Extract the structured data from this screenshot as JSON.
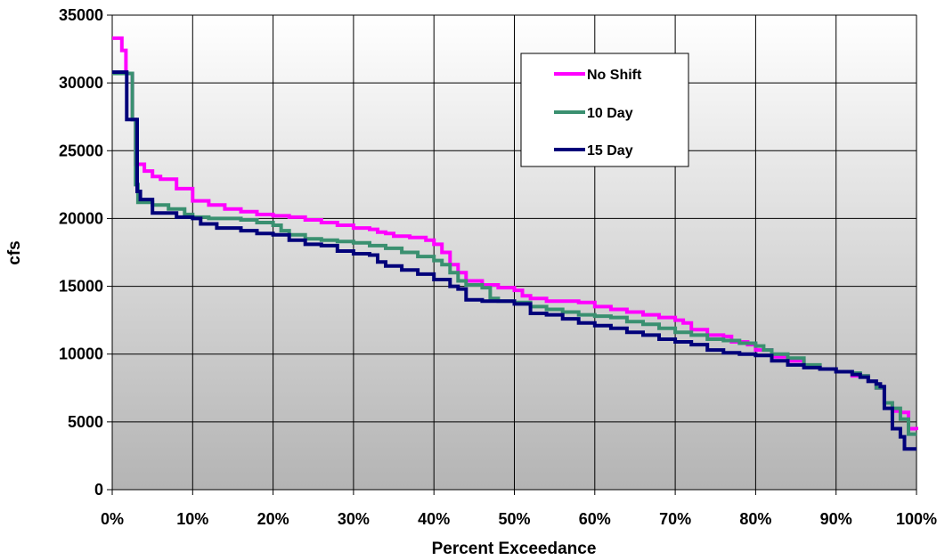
{
  "chart_data": {
    "type": "line",
    "title": "",
    "xlabel": "Percent Exceedance",
    "ylabel": "cfs",
    "xlim": [
      0,
      100
    ],
    "ylim": [
      0,
      35000
    ],
    "x_ticks": [
      0,
      10,
      20,
      30,
      40,
      50,
      60,
      70,
      80,
      90,
      100
    ],
    "x_tick_labels": [
      "0%",
      "10%",
      "20%",
      "30%",
      "40%",
      "50%",
      "60%",
      "70%",
      "80%",
      "90%",
      "100%"
    ],
    "y_ticks": [
      0,
      5000,
      10000,
      15000,
      20000,
      25000,
      30000,
      35000
    ],
    "y_tick_labels": [
      "0",
      "5000",
      "10000",
      "15000",
      "20000",
      "25000",
      "30000",
      "35000"
    ],
    "grid": true,
    "legend_position": "top-right",
    "series": [
      {
        "name": "No Shift",
        "color": "#ff00ff",
        "points": [
          [
            0,
            33300
          ],
          [
            1.2,
            32400
          ],
          [
            1.7,
            30700
          ],
          [
            2.5,
            27300
          ],
          [
            2.9,
            24000
          ],
          [
            4,
            23500
          ],
          [
            5,
            23100
          ],
          [
            6,
            22900
          ],
          [
            8,
            22200
          ],
          [
            10,
            21300
          ],
          [
            12,
            21000
          ],
          [
            14,
            20700
          ],
          [
            16,
            20500
          ],
          [
            18,
            20300
          ],
          [
            20,
            20200
          ],
          [
            22,
            20100
          ],
          [
            24,
            19900
          ],
          [
            26,
            19700
          ],
          [
            28,
            19500
          ],
          [
            30,
            19300
          ],
          [
            32,
            19200
          ],
          [
            33,
            19000
          ],
          [
            34,
            18900
          ],
          [
            35,
            18700
          ],
          [
            37,
            18600
          ],
          [
            39,
            18400
          ],
          [
            40,
            18100
          ],
          [
            41,
            17500
          ],
          [
            42,
            16600
          ],
          [
            43,
            16000
          ],
          [
            44,
            15400
          ],
          [
            46,
            15100
          ],
          [
            48,
            14900
          ],
          [
            50,
            14700
          ],
          [
            51,
            14300
          ],
          [
            52,
            14100
          ],
          [
            54,
            13900
          ],
          [
            58,
            13800
          ],
          [
            60,
            13500
          ],
          [
            62,
            13300
          ],
          [
            64,
            13100
          ],
          [
            66,
            12900
          ],
          [
            68,
            12700
          ],
          [
            70,
            12500
          ],
          [
            71,
            12300
          ],
          [
            72,
            11800
          ],
          [
            74,
            11400
          ],
          [
            76,
            11300
          ],
          [
            77,
            10900
          ],
          [
            79,
            10700
          ],
          [
            80,
            10300
          ],
          [
            82,
            9800
          ],
          [
            84,
            9500
          ],
          [
            86,
            9100
          ],
          [
            88,
            8900
          ],
          [
            90,
            8700
          ],
          [
            92,
            8400
          ],
          [
            94,
            8000
          ],
          [
            95,
            7500
          ],
          [
            96,
            6400
          ],
          [
            97,
            5800
          ],
          [
            98,
            5700
          ],
          [
            99,
            4500
          ],
          [
            100,
            4400
          ]
        ]
      },
      {
        "name": "10 Day",
        "color": "#3a9070",
        "points": [
          [
            0,
            30700
          ],
          [
            1.7,
            30700
          ],
          [
            2.5,
            27300
          ],
          [
            2.9,
            22500
          ],
          [
            3.2,
            21200
          ],
          [
            5,
            21000
          ],
          [
            7,
            20700
          ],
          [
            9,
            20300
          ],
          [
            10,
            20100
          ],
          [
            12,
            20000
          ],
          [
            16,
            19900
          ],
          [
            18,
            19700
          ],
          [
            20,
            19500
          ],
          [
            21,
            19100
          ],
          [
            22,
            18800
          ],
          [
            24,
            18500
          ],
          [
            26,
            18400
          ],
          [
            28,
            18300
          ],
          [
            30,
            18200
          ],
          [
            32,
            18000
          ],
          [
            34,
            17800
          ],
          [
            36,
            17500
          ],
          [
            38,
            17200
          ],
          [
            40,
            16900
          ],
          [
            41,
            16600
          ],
          [
            42,
            16000
          ],
          [
            43,
            15400
          ],
          [
            44,
            15100
          ],
          [
            46,
            14900
          ],
          [
            47,
            14100
          ],
          [
            48,
            13900
          ],
          [
            50,
            13800
          ],
          [
            52,
            13500
          ],
          [
            54,
            13300
          ],
          [
            56,
            13100
          ],
          [
            58,
            12900
          ],
          [
            60,
            12800
          ],
          [
            62,
            12700
          ],
          [
            64,
            12400
          ],
          [
            66,
            12200
          ],
          [
            68,
            11900
          ],
          [
            70,
            11600
          ],
          [
            72,
            11400
          ],
          [
            74,
            11100
          ],
          [
            76,
            11000
          ],
          [
            78,
            10800
          ],
          [
            80,
            10600
          ],
          [
            81,
            10300
          ],
          [
            82,
            10000
          ],
          [
            84,
            9700
          ],
          [
            86,
            9200
          ],
          [
            88,
            8900
          ],
          [
            90,
            8700
          ],
          [
            92,
            8600
          ],
          [
            93,
            8400
          ],
          [
            94,
            8000
          ],
          [
            95,
            7500
          ],
          [
            96,
            6400
          ],
          [
            97,
            6000
          ],
          [
            98,
            5200
          ],
          [
            99,
            4100
          ],
          [
            100,
            4100
          ]
        ]
      },
      {
        "name": "15 Day",
        "color": "#00007a",
        "points": [
          [
            0,
            30800
          ],
          [
            1.5,
            30800
          ],
          [
            1.8,
            27300
          ],
          [
            2.9,
            27300
          ],
          [
            3.1,
            22000
          ],
          [
            3.5,
            21400
          ],
          [
            4.5,
            21400
          ],
          [
            5,
            20400
          ],
          [
            8,
            20100
          ],
          [
            10,
            20000
          ],
          [
            11,
            19600
          ],
          [
            13,
            19300
          ],
          [
            16,
            19100
          ],
          [
            18,
            18900
          ],
          [
            20,
            18800
          ],
          [
            22,
            18400
          ],
          [
            24,
            18100
          ],
          [
            26,
            18000
          ],
          [
            28,
            17600
          ],
          [
            30,
            17400
          ],
          [
            32,
            17300
          ],
          [
            33,
            16800
          ],
          [
            34,
            16500
          ],
          [
            36,
            16200
          ],
          [
            38,
            15900
          ],
          [
            40,
            15500
          ],
          [
            42,
            15000
          ],
          [
            43,
            14800
          ],
          [
            44,
            14000
          ],
          [
            46,
            13900
          ],
          [
            48,
            13900
          ],
          [
            50,
            13700
          ],
          [
            52,
            13000
          ],
          [
            54,
            12900
          ],
          [
            56,
            12600
          ],
          [
            58,
            12300
          ],
          [
            60,
            12100
          ],
          [
            62,
            11900
          ],
          [
            64,
            11600
          ],
          [
            66,
            11400
          ],
          [
            68,
            11100
          ],
          [
            70,
            10900
          ],
          [
            72,
            10700
          ],
          [
            74,
            10300
          ],
          [
            76,
            10100
          ],
          [
            78,
            10000
          ],
          [
            80,
            9900
          ],
          [
            82,
            9500
          ],
          [
            84,
            9200
          ],
          [
            86,
            9000
          ],
          [
            88,
            8900
          ],
          [
            90,
            8700
          ],
          [
            92,
            8500
          ],
          [
            93,
            8300
          ],
          [
            94,
            8000
          ],
          [
            95,
            7800
          ],
          [
            95.5,
            7600
          ],
          [
            96,
            6000
          ],
          [
            97,
            4500
          ],
          [
            98,
            3900
          ],
          [
            98.5,
            3000
          ],
          [
            100,
            3000
          ]
        ]
      }
    ]
  }
}
